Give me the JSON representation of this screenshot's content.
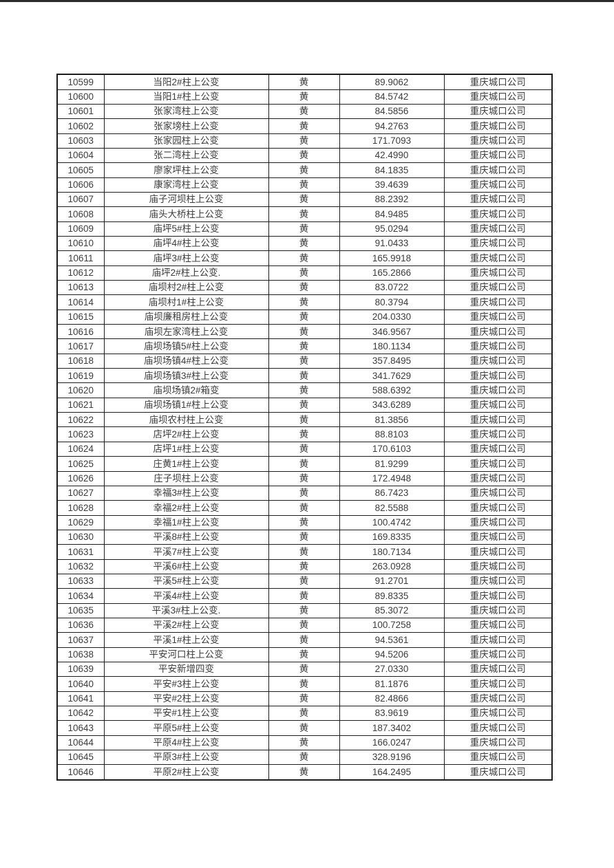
{
  "page": {
    "background_color": "#ffffff",
    "top_edge_color": "#2b2b2b",
    "text_color": "#3c3c3c",
    "border_color": "#1c1c1c"
  },
  "table": {
    "columns": [
      "id",
      "name",
      "grade",
      "value",
      "company"
    ],
    "rows": [
      [
        "10599",
        "当阳2#柱上公变",
        "黄",
        "89.9062",
        "重庆城口公司"
      ],
      [
        "10600",
        "当阳1#柱上公变",
        "黄",
        "84.5742",
        "重庆城口公司"
      ],
      [
        "10601",
        "张家湾柱上公变",
        "黄",
        "84.5856",
        "重庆城口公司"
      ],
      [
        "10602",
        "张家塝柱上公变",
        "黄",
        "94.2763",
        "重庆城口公司"
      ],
      [
        "10603",
        "张家园柱上公变",
        "黄",
        "171.7093",
        "重庆城口公司"
      ],
      [
        "10604",
        "张二湾柱上公变",
        "黄",
        "42.4990",
        "重庆城口公司"
      ],
      [
        "10605",
        "廖家坪柱上公变",
        "黄",
        "84.1835",
        "重庆城口公司"
      ],
      [
        "10606",
        "康家湾柱上公变",
        "黄",
        "39.4639",
        "重庆城口公司"
      ],
      [
        "10607",
        "庙子河坝柱上公变",
        "黄",
        "88.2392",
        "重庆城口公司"
      ],
      [
        "10608",
        "庙头大桥柱上公变",
        "黄",
        "84.9485",
        "重庆城口公司"
      ],
      [
        "10609",
        "庙坪5#柱上公变",
        "黄",
        "95.0294",
        "重庆城口公司"
      ],
      [
        "10610",
        "庙坪4#柱上公变",
        "黄",
        "91.0433",
        "重庆城口公司"
      ],
      [
        "10611",
        "庙坪3#柱上公变",
        "黄",
        "165.9918",
        "重庆城口公司"
      ],
      [
        "10612",
        "庙坪2#柱上公变.",
        "黄",
        "165.2866",
        "重庆城口公司"
      ],
      [
        "10613",
        "庙坝村2#柱上公变",
        "黄",
        "83.0722",
        "重庆城口公司"
      ],
      [
        "10614",
        "庙坝村1#柱上公变",
        "黄",
        "80.3794",
        "重庆城口公司"
      ],
      [
        "10615",
        "庙坝廉租房柱上公变",
        "黄",
        "204.0330",
        "重庆城口公司"
      ],
      [
        "10616",
        "庙坝左家湾柱上公变",
        "黄",
        "346.9567",
        "重庆城口公司"
      ],
      [
        "10617",
        "庙坝场镇5#柱上公变",
        "黄",
        "180.1134",
        "重庆城口公司"
      ],
      [
        "10618",
        "庙坝场镇4#柱上公变",
        "黄",
        "357.8495",
        "重庆城口公司"
      ],
      [
        "10619",
        "庙坝场镇3#柱上公变",
        "黄",
        "341.7629",
        "重庆城口公司"
      ],
      [
        "10620",
        "庙坝场镇2#箱变",
        "黄",
        "588.6392",
        "重庆城口公司"
      ],
      [
        "10621",
        "庙坝场镇1#柱上公变",
        "黄",
        "343.6289",
        "重庆城口公司"
      ],
      [
        "10622",
        "庙坝农村柱上公变",
        "黄",
        "81.3856",
        "重庆城口公司"
      ],
      [
        "10623",
        "店坪2#柱上公变",
        "黄",
        "88.8103",
        "重庆城口公司"
      ],
      [
        "10624",
        "店坪1#柱上公变",
        "黄",
        "170.6103",
        "重庆城口公司"
      ],
      [
        "10625",
        "庄黄1#柱上公变",
        "黄",
        "81.9299",
        "重庆城口公司"
      ],
      [
        "10626",
        "庄子坝柱上公变",
        "黄",
        "172.4948",
        "重庆城口公司"
      ],
      [
        "10627",
        "幸福3#柱上公变",
        "黄",
        "86.7423",
        "重庆城口公司"
      ],
      [
        "10628",
        "幸福2#柱上公变",
        "黄",
        "82.5588",
        "重庆城口公司"
      ],
      [
        "10629",
        "幸福1#柱上公变",
        "黄",
        "100.4742",
        "重庆城口公司"
      ],
      [
        "10630",
        "平溪8#柱上公变",
        "黄",
        "169.8335",
        "重庆城口公司"
      ],
      [
        "10631",
        "平溪7#柱上公变",
        "黄",
        "180.7134",
        "重庆城口公司"
      ],
      [
        "10632",
        "平溪6#柱上公变",
        "黄",
        "263.0928",
        "重庆城口公司"
      ],
      [
        "10633",
        "平溪5#柱上公变",
        "黄",
        "91.2701",
        "重庆城口公司"
      ],
      [
        "10634",
        "平溪4#柱上公变",
        "黄",
        "89.8335",
        "重庆城口公司"
      ],
      [
        "10635",
        "平溪3#柱上公变.",
        "黄",
        "85.3072",
        "重庆城口公司"
      ],
      [
        "10636",
        "平溪2#柱上公变",
        "黄",
        "100.7258",
        "重庆城口公司"
      ],
      [
        "10637",
        "平溪1#柱上公变",
        "黄",
        "94.5361",
        "重庆城口公司"
      ],
      [
        "10638",
        "平安河口柱上公变",
        "黄",
        "94.5206",
        "重庆城口公司"
      ],
      [
        "10639",
        "平安新增四变",
        "黄",
        "27.0330",
        "重庆城口公司"
      ],
      [
        "10640",
        "平安#3柱上公变",
        "黄",
        "81.1876",
        "重庆城口公司"
      ],
      [
        "10641",
        "平安#2柱上公变",
        "黄",
        "82.4866",
        "重庆城口公司"
      ],
      [
        "10642",
        "平安#1柱上公变",
        "黄",
        "83.9619",
        "重庆城口公司"
      ],
      [
        "10643",
        "平原5#柱上公变",
        "黄",
        "187.3402",
        "重庆城口公司"
      ],
      [
        "10644",
        "平原4#柱上公变",
        "黄",
        "166.0247",
        "重庆城口公司"
      ],
      [
        "10645",
        "平原3#柱上公变",
        "黄",
        "328.9196",
        "重庆城口公司"
      ],
      [
        "10646",
        "平原2#柱上公变",
        "黄",
        "164.2495",
        "重庆城口公司"
      ]
    ]
  }
}
